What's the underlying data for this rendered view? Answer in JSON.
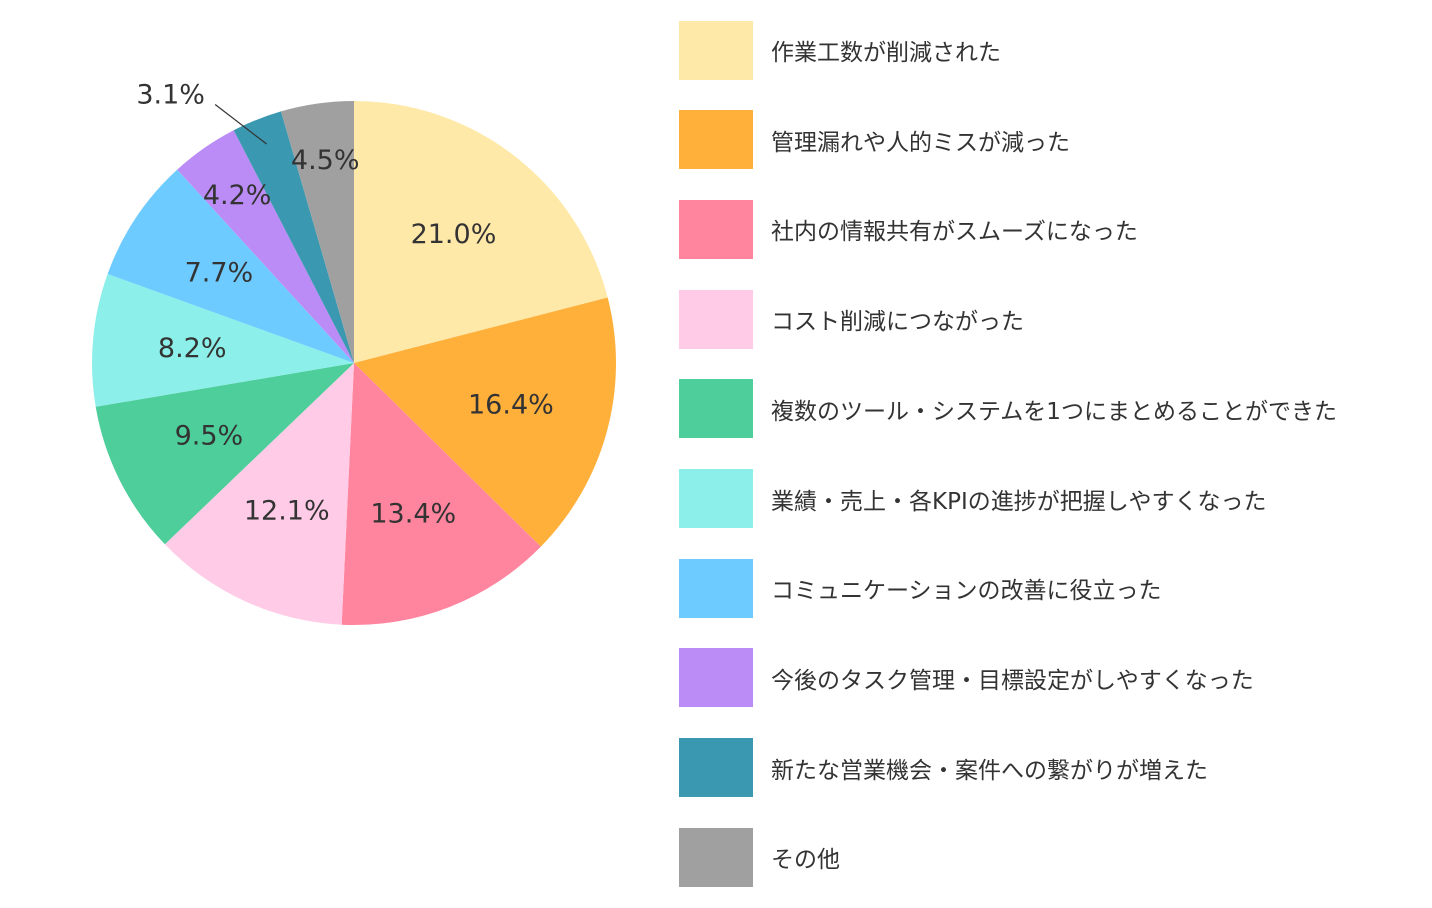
{
  "chart_data": {
    "type": "pie",
    "start_angle": "12 o'clock",
    "direction": "clockwise",
    "legend_position": "right",
    "label_color": "#333333",
    "slices": [
      {
        "label": "作業工数が削減された",
        "value": 21.0,
        "value_label": "21.0%",
        "color": "#FFE9A8"
      },
      {
        "label": "管理漏れや人的ミスが減った",
        "value": 16.4,
        "value_label": "16.4%",
        "color": "#FFB03B"
      },
      {
        "label": "社内の情報共有がスムーズになった",
        "value": 13.4,
        "value_label": "13.4%",
        "color": "#FF859E"
      },
      {
        "label": "コスト削減につながった",
        "value": 12.1,
        "value_label": "12.1%",
        "color": "#FFCBE6"
      },
      {
        "label": "複数のツール・システムを1つにまとめることができた",
        "value": 9.5,
        "value_label": "9.5%",
        "color": "#4DCE9B"
      },
      {
        "label": "業績・売上・各KPIの進捗が把握しやすくなった",
        "value": 8.2,
        "value_label": "8.2%",
        "color": "#8CEFEA"
      },
      {
        "label": "コミュニケーションの改善に役立った",
        "value": 7.7,
        "value_label": "7.7%",
        "color": "#6DCBFF"
      },
      {
        "label": "今後のタスク管理・目標設定がしやすくなった",
        "value": 4.2,
        "value_label": "4.2%",
        "color": "#BB8CF6"
      },
      {
        "label": "新たな営業機会・案件への繋がりが増えた",
        "value": 3.1,
        "value_label": "3.1%",
        "color": "#3A98B0"
      },
      {
        "label": "その他",
        "value": 4.5,
        "value_label": "4.5%",
        "color": "#A0A0A0"
      }
    ]
  }
}
